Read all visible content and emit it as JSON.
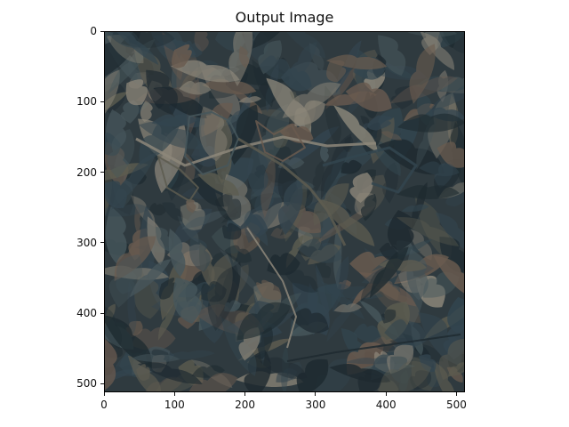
{
  "title": "Output Image",
  "image": {
    "description_icon": "texture-painting-image",
    "palette": {
      "dark_slate": "#1e2a30",
      "slate_blue": "#33454f",
      "muted_teal": "#47575c",
      "olive_gray": "#5d5c50",
      "rust_brown": "#6a5b4f",
      "pale_stone": "#8d877a"
    }
  },
  "axes": {
    "x_ticks": [
      "0",
      "100",
      "200",
      "300",
      "400",
      "500"
    ],
    "y_ticks": [
      "0",
      "100",
      "200",
      "300",
      "400",
      "500"
    ],
    "x_range": [
      0,
      512
    ],
    "y_range": [
      0,
      512
    ]
  }
}
